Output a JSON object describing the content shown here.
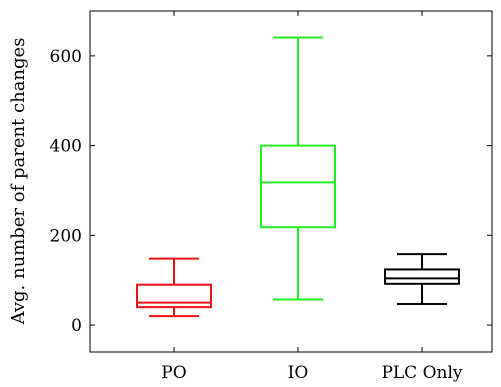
{
  "chart_data": {
    "type": "box",
    "title": "",
    "xlabel": "",
    "ylabel": "Avg. number of parent changes",
    "ylim": [
      -60,
      700
    ],
    "yticks": [
      0,
      200,
      400,
      600
    ],
    "yticklabels": [
      "0",
      "200",
      "400",
      "600"
    ],
    "grid": false,
    "legend": "none",
    "categories": [
      "PO",
      "IO",
      "PLC Only"
    ],
    "series": [
      {
        "category": "PO",
        "whisker_low": 20,
        "q1": 40,
        "median": 50,
        "q3": 90,
        "whisker_high": 148,
        "color": "#ee1111"
      },
      {
        "category": "IO",
        "whisker_low": 57,
        "q1": 218,
        "median": 318,
        "q3": 400,
        "whisker_high": 641,
        "color": "#22ee22"
      },
      {
        "category": "PLC Only",
        "whisker_low": 47,
        "q1": 92,
        "median": 104,
        "q3": 124,
        "whisker_high": 158,
        "color": "#000000"
      }
    ]
  }
}
